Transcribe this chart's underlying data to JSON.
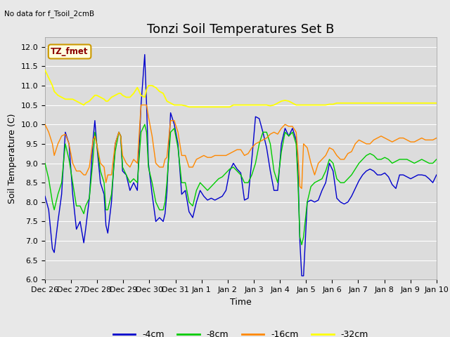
{
  "title": "Tonzi Soil Temperatures Set B",
  "xlabel": "Time",
  "ylabel": "Soil Temperature (C)",
  "top_left_note": "No data for f_Tsoil_2cmB",
  "annotation_box": "TZ_fmet",
  "ylim": [
    6.0,
    12.25
  ],
  "yticks": [
    6.0,
    6.5,
    7.0,
    7.5,
    8.0,
    8.5,
    9.0,
    9.5,
    10.0,
    10.5,
    11.0,
    11.5,
    12.0
  ],
  "x_tick_labels": [
    "Dec 26",
    "Dec 27",
    "Dec 28",
    "Dec 29",
    "Dec 30",
    "Dec 31",
    "Jan 1",
    "Jan 2",
    "Jan 3",
    "Jan 4",
    "Jan 5",
    "Jan 6",
    "Jan 7",
    "Jan 8",
    "Jan 9",
    "Jan 10"
  ],
  "colors": {
    "4cm": "#0000cc",
    "8cm": "#00cc00",
    "16cm": "#ff8800",
    "32cm": "#ffff00"
  },
  "legend_labels": [
    "-4cm",
    "-8cm",
    "-16cm",
    "-32cm"
  ],
  "bg_color": "#e8e8e8",
  "plot_bg_color": "#dcdcdc",
  "grid_color": "#ffffff",
  "title_fontsize": 13,
  "axis_label_fontsize": 9,
  "tick_fontsize": 8,
  "x_4cm": [
    0,
    2,
    4,
    5,
    7,
    9,
    11,
    13,
    15,
    17,
    19,
    21,
    22,
    24,
    26,
    27,
    28,
    30,
    32,
    33,
    34,
    36,
    38,
    40,
    41,
    42,
    44,
    46,
    48,
    50,
    52,
    54,
    55,
    56,
    58,
    60,
    62,
    64,
    65,
    66,
    68,
    70,
    72,
    74,
    76,
    78,
    80,
    82,
    84,
    86,
    88,
    90,
    92,
    94,
    96,
    98,
    100,
    102,
    104,
    106,
    108,
    110,
    112,
    114,
    116,
    118,
    120,
    122,
    124,
    126,
    128,
    130,
    132,
    134,
    136,
    137,
    138,
    139,
    140,
    142,
    144,
    146,
    148,
    150,
    152,
    154,
    156,
    158,
    160,
    162,
    164,
    166,
    168,
    170,
    172,
    174,
    176,
    178,
    180,
    182,
    184,
    186,
    188,
    190,
    192,
    194,
    196,
    198,
    200,
    202,
    204,
    206,
    208,
    210,
    212
  ],
  "y_4cm": [
    8.15,
    7.8,
    6.8,
    6.7,
    7.5,
    8.2,
    9.8,
    9.5,
    8.2,
    7.3,
    7.5,
    6.95,
    7.3,
    8.1,
    9.6,
    10.1,
    9.5,
    8.5,
    8.2,
    7.4,
    7.2,
    8.0,
    9.5,
    9.8,
    9.7,
    8.8,
    8.7,
    8.3,
    8.5,
    8.3,
    10.5,
    11.8,
    10.5,
    9.0,
    8.2,
    7.5,
    7.6,
    7.5,
    7.7,
    8.25,
    10.3,
    10.0,
    9.5,
    8.2,
    8.3,
    7.75,
    7.6,
    8.0,
    8.3,
    8.15,
    8.05,
    8.1,
    8.05,
    8.1,
    8.15,
    8.3,
    8.8,
    9.0,
    8.85,
    8.75,
    8.05,
    8.1,
    9.1,
    10.2,
    10.15,
    9.8,
    9.4,
    8.8,
    8.3,
    8.3,
    9.5,
    9.9,
    9.7,
    9.9,
    9.6,
    8.8,
    7.0,
    6.1,
    6.1,
    8.0,
    8.05,
    8.0,
    8.05,
    8.3,
    8.5,
    9.0,
    8.8,
    8.1,
    8.0,
    7.95,
    8.0,
    8.15,
    8.35,
    8.55,
    8.7,
    8.8,
    8.85,
    8.8,
    8.7,
    8.7,
    8.75,
    8.65,
    8.45,
    8.35,
    8.7,
    8.7,
    8.65,
    8.6,
    8.65,
    8.7,
    8.7,
    8.68,
    8.6,
    8.5,
    8.7
  ],
  "x_8cm": [
    0,
    2,
    4,
    5,
    7,
    9,
    11,
    13,
    15,
    17,
    19,
    21,
    22,
    24,
    26,
    27,
    28,
    30,
    32,
    33,
    34,
    36,
    38,
    40,
    41,
    42,
    44,
    46,
    48,
    50,
    52,
    54,
    55,
    56,
    58,
    60,
    62,
    64,
    65,
    66,
    68,
    70,
    72,
    74,
    76,
    78,
    80,
    82,
    84,
    86,
    88,
    90,
    92,
    94,
    96,
    98,
    100,
    102,
    104,
    106,
    108,
    110,
    112,
    114,
    116,
    118,
    120,
    122,
    124,
    126,
    128,
    130,
    132,
    134,
    136,
    137,
    138,
    139,
    140,
    142,
    144,
    146,
    148,
    150,
    152,
    154,
    156,
    158,
    160,
    162,
    164,
    166,
    168,
    170,
    172,
    174,
    176,
    178,
    180,
    182,
    184,
    186,
    188,
    190,
    192,
    194,
    196,
    198,
    200,
    202,
    204,
    206,
    208,
    210,
    212
  ],
  "y_8cm": [
    9.0,
    8.6,
    8.0,
    7.8,
    8.2,
    8.5,
    9.5,
    9.1,
    8.5,
    7.9,
    7.9,
    7.7,
    7.9,
    8.1,
    9.1,
    9.8,
    9.5,
    8.8,
    8.5,
    7.8,
    7.8,
    8.2,
    9.3,
    9.8,
    9.7,
    8.9,
    8.7,
    8.5,
    8.6,
    8.5,
    9.8,
    10.0,
    9.8,
    8.9,
    8.5,
    8.0,
    7.8,
    7.8,
    8.0,
    8.5,
    9.8,
    9.9,
    9.4,
    8.5,
    8.5,
    8.0,
    7.9,
    8.3,
    8.5,
    8.4,
    8.3,
    8.4,
    8.5,
    8.6,
    8.65,
    8.75,
    8.85,
    8.9,
    8.8,
    8.7,
    8.5,
    8.5,
    8.7,
    9.0,
    9.5,
    9.8,
    9.8,
    9.5,
    8.8,
    8.5,
    9.3,
    9.8,
    9.7,
    9.8,
    9.5,
    8.5,
    7.1,
    6.9,
    7.1,
    8.0,
    8.4,
    8.5,
    8.55,
    8.6,
    8.8,
    9.1,
    9.0,
    8.6,
    8.5,
    8.5,
    8.6,
    8.7,
    8.85,
    9.0,
    9.1,
    9.2,
    9.25,
    9.2,
    9.1,
    9.1,
    9.15,
    9.1,
    9.0,
    9.05,
    9.1,
    9.1,
    9.1,
    9.05,
    9.0,
    9.05,
    9.1,
    9.05,
    9.0,
    9.0,
    9.1
  ],
  "x_16cm": [
    0,
    2,
    4,
    5,
    7,
    9,
    11,
    13,
    15,
    17,
    19,
    21,
    22,
    24,
    26,
    27,
    28,
    30,
    32,
    33,
    34,
    36,
    38,
    40,
    41,
    42,
    44,
    46,
    48,
    50,
    52,
    54,
    55,
    56,
    58,
    60,
    62,
    64,
    65,
    66,
    68,
    70,
    72,
    74,
    76,
    78,
    80,
    82,
    84,
    86,
    88,
    90,
    92,
    94,
    96,
    98,
    100,
    102,
    104,
    106,
    108,
    110,
    112,
    114,
    116,
    118,
    120,
    122,
    124,
    126,
    128,
    130,
    132,
    134,
    136,
    137,
    138,
    139,
    140,
    142,
    144,
    146,
    148,
    150,
    152,
    154,
    156,
    158,
    160,
    162,
    164,
    166,
    168,
    170,
    172,
    174,
    176,
    178,
    180,
    182,
    184,
    186,
    188,
    190,
    192,
    194,
    196,
    198,
    200,
    202,
    204,
    206,
    208,
    210,
    212
  ],
  "y_16cm": [
    10.0,
    9.8,
    9.5,
    9.2,
    9.5,
    9.7,
    9.75,
    9.5,
    9.0,
    8.8,
    8.8,
    8.7,
    8.7,
    8.9,
    9.6,
    9.7,
    9.5,
    9.0,
    8.9,
    8.5,
    8.7,
    8.7,
    9.5,
    9.8,
    9.7,
    9.2,
    9.0,
    8.9,
    9.1,
    9.0,
    10.5,
    10.5,
    10.5,
    10.2,
    9.7,
    9.0,
    8.9,
    8.9,
    9.1,
    9.15,
    10.1,
    10.1,
    9.8,
    9.2,
    9.2,
    8.9,
    8.9,
    9.1,
    9.15,
    9.2,
    9.15,
    9.15,
    9.2,
    9.2,
    9.2,
    9.2,
    9.25,
    9.3,
    9.35,
    9.35,
    9.2,
    9.25,
    9.4,
    9.5,
    9.55,
    9.6,
    9.65,
    9.75,
    9.8,
    9.75,
    9.9,
    10.0,
    9.95,
    9.95,
    9.8,
    9.2,
    8.4,
    8.35,
    9.5,
    9.4,
    9.0,
    8.7,
    9.0,
    9.1,
    9.2,
    9.4,
    9.35,
    9.2,
    9.1,
    9.1,
    9.25,
    9.3,
    9.5,
    9.6,
    9.55,
    9.5,
    9.5,
    9.6,
    9.65,
    9.7,
    9.65,
    9.6,
    9.55,
    9.6,
    9.65,
    9.65,
    9.6,
    9.55,
    9.55,
    9.6,
    9.65,
    9.6,
    9.6,
    9.6,
    9.65
  ],
  "x_32cm": [
    0,
    2,
    4,
    5,
    7,
    9,
    11,
    13,
    15,
    17,
    19,
    21,
    22,
    24,
    26,
    27,
    28,
    30,
    32,
    33,
    34,
    36,
    38,
    40,
    41,
    42,
    44,
    46,
    48,
    50,
    52,
    54,
    55,
    56,
    58,
    60,
    62,
    64,
    65,
    66,
    68,
    70,
    72,
    74,
    76,
    78,
    80,
    82,
    84,
    86,
    88,
    90,
    92,
    94,
    96,
    98,
    100,
    102,
    104,
    106,
    108,
    110,
    112,
    114,
    116,
    118,
    120,
    122,
    124,
    126,
    128,
    130,
    132,
    134,
    136,
    137,
    138,
    139,
    140,
    142,
    144,
    146,
    148,
    150,
    152,
    154,
    156,
    158,
    160,
    162,
    164,
    166,
    168,
    170,
    172,
    174,
    176,
    178,
    180,
    182,
    184,
    186,
    188,
    190,
    192,
    194,
    196,
    198,
    200,
    202,
    204,
    206,
    208,
    210,
    212
  ],
  "y_32cm": [
    11.4,
    11.2,
    11.0,
    10.85,
    10.75,
    10.7,
    10.65,
    10.65,
    10.65,
    10.6,
    10.55,
    10.5,
    10.55,
    10.6,
    10.7,
    10.75,
    10.75,
    10.7,
    10.65,
    10.6,
    10.6,
    10.7,
    10.75,
    10.8,
    10.8,
    10.75,
    10.7,
    10.7,
    10.8,
    10.95,
    10.75,
    10.7,
    10.9,
    11.0,
    11.0,
    10.95,
    10.85,
    10.8,
    10.7,
    10.6,
    10.55,
    10.5,
    10.5,
    10.5,
    10.48,
    10.45,
    10.45,
    10.45,
    10.45,
    10.45,
    10.45,
    10.45,
    10.45,
    10.45,
    10.45,
    10.45,
    10.45,
    10.5,
    10.5,
    10.5,
    10.5,
    10.5,
    10.5,
    10.5,
    10.5,
    10.5,
    10.5,
    10.48,
    10.5,
    10.55,
    10.6,
    10.62,
    10.6,
    10.55,
    10.5,
    10.5,
    10.5,
    10.5,
    10.5,
    10.5,
    10.5,
    10.5,
    10.5,
    10.5,
    10.5,
    10.52,
    10.52,
    10.55,
    10.55,
    10.55,
    10.55,
    10.55,
    10.55,
    10.55,
    10.55,
    10.55,
    10.55,
    10.55,
    10.55,
    10.55,
    10.55,
    10.55,
    10.55,
    10.55,
    10.55,
    10.55,
    10.55,
    10.55,
    10.55,
    10.55,
    10.55,
    10.55,
    10.55,
    10.55,
    10.55
  ]
}
